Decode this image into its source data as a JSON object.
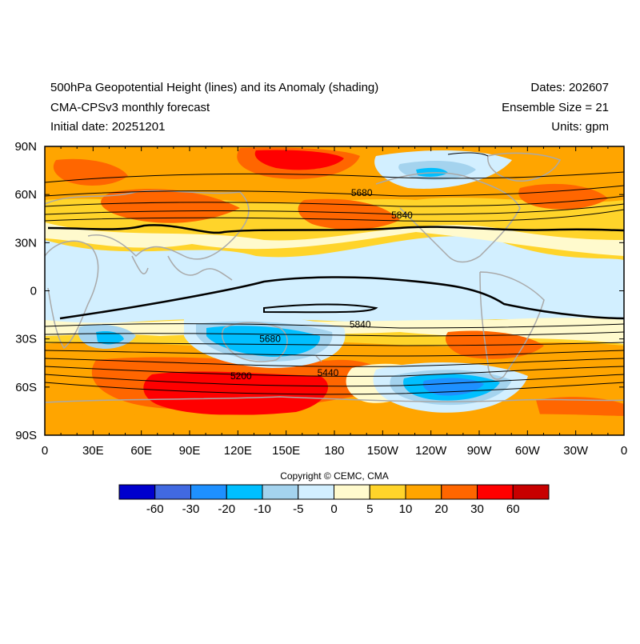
{
  "header": {
    "title": "500hPa Geopotential Height (lines) and its Anomaly (shading)",
    "subtitle": "CMA-CPSv3 monthly forecast",
    "initial_date": "Initial date: 20251201",
    "dates": "Dates: 202607",
    "ensemble": "Ensemble Size = 21",
    "units": "Units: gpm"
  },
  "map": {
    "lat_labels": [
      "90N",
      "60N",
      "30N",
      "0",
      "30S",
      "60S",
      "90S"
    ],
    "lon_labels": [
      "0",
      "30E",
      "60E",
      "90E",
      "120E",
      "150E",
      "180",
      "150W",
      "120W",
      "90W",
      "60W",
      "30W",
      "0"
    ],
    "contour_labels": [
      {
        "text": "5680",
        "lon": 197,
        "lat": 61
      },
      {
        "text": "5840",
        "lon": 222,
        "lat": 47
      },
      {
        "text": "5840",
        "lon": 196,
        "lat": -21
      },
      {
        "text": "5680",
        "lon": 140,
        "lat": -30
      },
      {
        "text": "5440",
        "lon": 176,
        "lat": -51
      },
      {
        "text": "5200",
        "lon": 122,
        "lat": -53
      }
    ]
  },
  "colorbar": {
    "labels": [
      "-60",
      "-30",
      "-20",
      "-10",
      "-5",
      "0",
      "5",
      "10",
      "20",
      "30",
      "60"
    ],
    "colors": [
      "#0000cd",
      "#4169e1",
      "#1e90ff",
      "#00bfff",
      "#a4d3ee",
      "#d2efff",
      "#fffacd",
      "#ffd42a",
      "#ffa500",
      "#ff6600",
      "#ff0000",
      "#c80000"
    ]
  },
  "copyright": "Copyright © CEMC, CMA"
}
